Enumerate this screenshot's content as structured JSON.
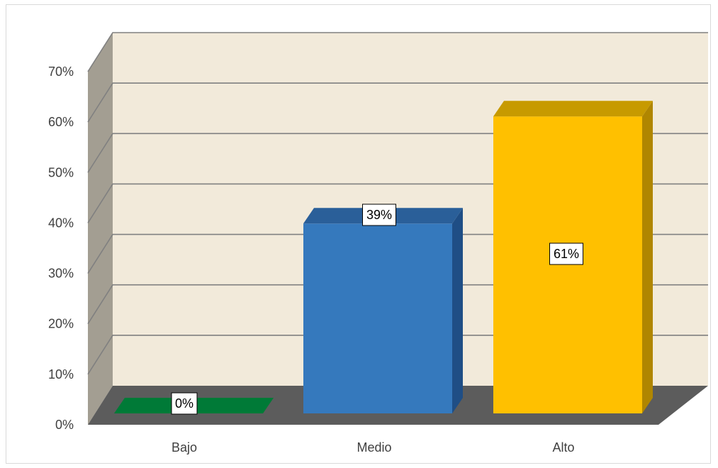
{
  "chart_data": {
    "type": "bar",
    "style": "3d-column",
    "categories": [
      "Bajo",
      "Medio",
      "Alto"
    ],
    "values": [
      0,
      39,
      61
    ],
    "data_labels": [
      "0%",
      "39%",
      "61%"
    ],
    "ylim": [
      0,
      70
    ],
    "y_ticks": [
      {
        "value": 0,
        "label": "0%"
      },
      {
        "value": 10,
        "label": "10%"
      },
      {
        "value": 20,
        "label": "20%"
      },
      {
        "value": 30,
        "label": "30%"
      },
      {
        "value": 40,
        "label": "40%"
      },
      {
        "value": 50,
        "label": "50%"
      },
      {
        "value": 60,
        "label": "60%"
      },
      {
        "value": 70,
        "label": "70%"
      }
    ],
    "grid": true,
    "legend": "none",
    "colors": {
      "bars": [
        "#00843d",
        "#3579bd",
        "#ffc000"
      ],
      "bars_side": [
        "#006630",
        "#1f4e85",
        "#b08600"
      ],
      "bars_top": [
        "#007a37",
        "#2a5f99",
        "#c79a00"
      ],
      "back_wall": "#f2eada",
      "side_wall": "#a39e92",
      "floor": "#5c5c5c",
      "gridline": "#808080"
    }
  }
}
